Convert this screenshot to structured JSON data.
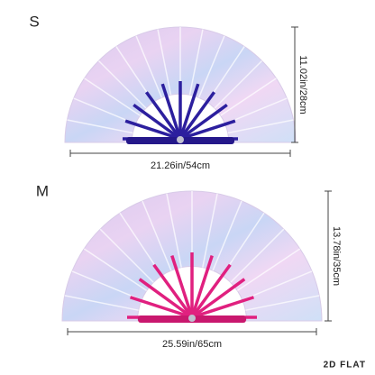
{
  "sizes": [
    {
      "label": "S",
      "width": "21.26in/54cm",
      "height": "11.02in/28cm"
    },
    {
      "label": "M",
      "width": "25.59in/65cm",
      "height": "13.78in/35cm"
    }
  ],
  "brand": "2D FLAT"
}
